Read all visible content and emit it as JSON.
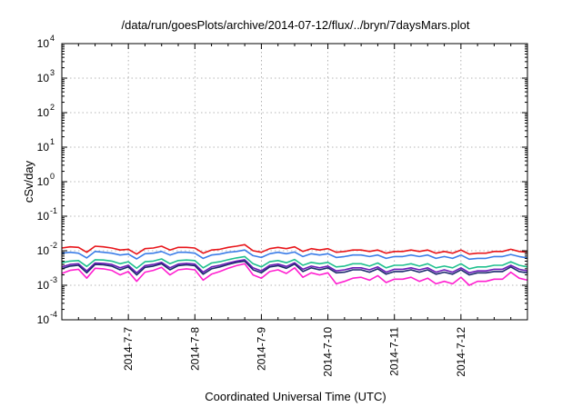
{
  "chart_data": {
    "type": "line",
    "title": "/data/run/goesPlots/archive/2014-07-12/flux/../bryn/7daysMars.plot",
    "xlabel": "Coordinated Universal Time (UTC)",
    "ylabel": "cSv/day",
    "yscale": "log",
    "ylim": [
      0.0001,
      10000
    ],
    "yticks": [
      {
        "base": "10",
        "exp": "-4"
      },
      {
        "base": "10",
        "exp": "-3"
      },
      {
        "base": "10",
        "exp": "-2"
      },
      {
        "base": "10",
        "exp": "-1"
      },
      {
        "base": "10",
        "exp": "0"
      },
      {
        "base": "10",
        "exp": "1"
      },
      {
        "base": "10",
        "exp": "2"
      },
      {
        "base": "10",
        "exp": "3"
      },
      {
        "base": "10",
        "exp": "4"
      }
    ],
    "xlim": [
      "2014-07-06T00:00",
      "2014-07-13T00:00"
    ],
    "xticks": [
      "2014-7-7",
      "2014-7-8",
      "2014-7-9",
      "2014-7-10",
      "2014-7-11",
      "2014-7-12"
    ],
    "grid": true,
    "legend": "none",
    "x": [
      "2014-07-06T00:00",
      "2014-07-06T03:00",
      "2014-07-06T06:00",
      "2014-07-06T09:00",
      "2014-07-06T12:00",
      "2014-07-06T15:00",
      "2014-07-06T18:00",
      "2014-07-06T21:00",
      "2014-07-07T00:00",
      "2014-07-07T03:00",
      "2014-07-07T06:00",
      "2014-07-07T09:00",
      "2014-07-07T12:00",
      "2014-07-07T15:00",
      "2014-07-07T18:00",
      "2014-07-07T21:00",
      "2014-07-08T00:00",
      "2014-07-08T03:00",
      "2014-07-08T06:00",
      "2014-07-08T09:00",
      "2014-07-08T12:00",
      "2014-07-08T15:00",
      "2014-07-08T18:00",
      "2014-07-08T21:00",
      "2014-07-09T00:00",
      "2014-07-09T03:00",
      "2014-07-09T06:00",
      "2014-07-09T09:00",
      "2014-07-09T12:00",
      "2014-07-09T15:00",
      "2014-07-09T18:00",
      "2014-07-09T21:00",
      "2014-07-10T00:00",
      "2014-07-10T03:00",
      "2014-07-10T06:00",
      "2014-07-10T09:00",
      "2014-07-10T12:00",
      "2014-07-10T15:00",
      "2014-07-10T18:00",
      "2014-07-10T21:00",
      "2014-07-11T00:00",
      "2014-07-11T03:00",
      "2014-07-11T06:00",
      "2014-07-11T09:00",
      "2014-07-11T12:00",
      "2014-07-11T15:00",
      "2014-07-11T18:00",
      "2014-07-11T21:00",
      "2014-07-12T00:00",
      "2014-07-12T03:00",
      "2014-07-12T06:00",
      "2014-07-12T09:00",
      "2014-07-12T12:00",
      "2014-07-12T15:00",
      "2014-07-12T18:00",
      "2014-07-12T21:00",
      "2014-07-13T00:00"
    ],
    "series": [
      {
        "color": "#e8161b",
        "values": [
          0.012,
          0.013,
          0.0125,
          0.009,
          0.0135,
          0.013,
          0.012,
          0.0105,
          0.011,
          0.008,
          0.0115,
          0.012,
          0.0135,
          0.0105,
          0.0125,
          0.0125,
          0.012,
          0.0085,
          0.0105,
          0.011,
          0.0125,
          0.0135,
          0.015,
          0.01,
          0.009,
          0.0115,
          0.0125,
          0.0115,
          0.013,
          0.0095,
          0.0115,
          0.0105,
          0.0115,
          0.009,
          0.0095,
          0.0105,
          0.0105,
          0.0095,
          0.0105,
          0.0085,
          0.0095,
          0.0095,
          0.0105,
          0.0095,
          0.0105,
          0.0085,
          0.0095,
          0.0085,
          0.0105,
          0.008,
          0.0085,
          0.0085,
          0.0095,
          0.0095,
          0.011,
          0.0095,
          0.009
        ]
      },
      {
        "color": "#3b7de8",
        "values": [
          0.0085,
          0.009,
          0.0085,
          0.0062,
          0.0095,
          0.009,
          0.0085,
          0.0075,
          0.008,
          0.0058,
          0.0082,
          0.0085,
          0.0095,
          0.0075,
          0.009,
          0.009,
          0.0085,
          0.006,
          0.0075,
          0.008,
          0.009,
          0.0095,
          0.0105,
          0.0072,
          0.0064,
          0.0082,
          0.009,
          0.0082,
          0.0092,
          0.0068,
          0.0082,
          0.0075,
          0.0082,
          0.0064,
          0.0068,
          0.0075,
          0.0075,
          0.0068,
          0.0075,
          0.006,
          0.0068,
          0.0068,
          0.0075,
          0.0068,
          0.0075,
          0.006,
          0.0068,
          0.006,
          0.0075,
          0.0057,
          0.006,
          0.006,
          0.0068,
          0.0068,
          0.0078,
          0.0068,
          0.0062
        ]
      },
      {
        "color": "#20c08e",
        "values": [
          0.0045,
          0.005,
          0.0052,
          0.0035,
          0.0055,
          0.0054,
          0.005,
          0.0042,
          0.0048,
          0.0031,
          0.0048,
          0.005,
          0.0058,
          0.0042,
          0.0052,
          0.0054,
          0.0052,
          0.0032,
          0.0044,
          0.0048,
          0.0055,
          0.0062,
          0.0068,
          0.0042,
          0.0034,
          0.0048,
          0.0052,
          0.0045,
          0.0056,
          0.0038,
          0.0046,
          0.0042,
          0.0046,
          0.0034,
          0.0036,
          0.0042,
          0.0042,
          0.0036,
          0.0044,
          0.0032,
          0.0038,
          0.0038,
          0.0042,
          0.0036,
          0.0042,
          0.0032,
          0.0036,
          0.0032,
          0.0042,
          0.003,
          0.0034,
          0.0034,
          0.0038,
          0.0038,
          0.0048,
          0.0038,
          0.0034
        ]
      },
      {
        "color": "#6a1bb8",
        "values": [
          0.0034,
          0.004,
          0.0042,
          0.0026,
          0.0044,
          0.0043,
          0.004,
          0.0032,
          0.0038,
          0.0023,
          0.0037,
          0.004,
          0.0046,
          0.0032,
          0.0041,
          0.0043,
          0.0041,
          0.0024,
          0.0034,
          0.0038,
          0.0044,
          0.005,
          0.0055,
          0.0032,
          0.0026,
          0.0038,
          0.0041,
          0.0035,
          0.0045,
          0.0029,
          0.0036,
          0.0032,
          0.0036,
          0.0026,
          0.0028,
          0.0032,
          0.0032,
          0.0028,
          0.0034,
          0.0024,
          0.0029,
          0.0029,
          0.0032,
          0.0028,
          0.0032,
          0.0024,
          0.0028,
          0.0024,
          0.0032,
          0.0023,
          0.0026,
          0.0026,
          0.0029,
          0.0029,
          0.0038,
          0.0029,
          0.0026
        ]
      },
      {
        "color": "#1d2a6e",
        "values": [
          0.003,
          0.0036,
          0.0038,
          0.0023,
          0.004,
          0.0039,
          0.0036,
          0.0028,
          0.0034,
          0.002,
          0.0033,
          0.0036,
          0.0042,
          0.0028,
          0.0037,
          0.0039,
          0.0037,
          0.0021,
          0.003,
          0.0034,
          0.004,
          0.0046,
          0.005,
          0.0028,
          0.0023,
          0.0034,
          0.0037,
          0.0031,
          0.0041,
          0.0025,
          0.0032,
          0.0028,
          0.0032,
          0.0023,
          0.0024,
          0.0028,
          0.0028,
          0.0024,
          0.003,
          0.0021,
          0.0025,
          0.0025,
          0.0028,
          0.0024,
          0.0028,
          0.0021,
          0.0024,
          0.0021,
          0.0028,
          0.002,
          0.0023,
          0.0023,
          0.0025,
          0.0025,
          0.0034,
          0.0025,
          0.0023
        ]
      },
      {
        "color": "#ff1fd0",
        "values": [
          0.0022,
          0.0027,
          0.0029,
          0.0016,
          0.0031,
          0.003,
          0.0027,
          0.002,
          0.0025,
          0.0013,
          0.0024,
          0.0027,
          0.0033,
          0.002,
          0.0028,
          0.003,
          0.0028,
          0.0014,
          0.0021,
          0.0025,
          0.0031,
          0.0037,
          0.0042,
          0.002,
          0.0016,
          0.0025,
          0.0028,
          0.0022,
          0.0032,
          0.0017,
          0.0023,
          0.002,
          0.0023,
          0.0011,
          0.0013,
          0.0016,
          0.0017,
          0.0014,
          0.0019,
          0.0012,
          0.0015,
          0.0015,
          0.0017,
          0.0013,
          0.0016,
          0.0011,
          0.0013,
          0.0011,
          0.0017,
          0.001,
          0.0013,
          0.0013,
          0.0015,
          0.0015,
          0.0024,
          0.0016,
          0.0014
        ]
      }
    ]
  }
}
